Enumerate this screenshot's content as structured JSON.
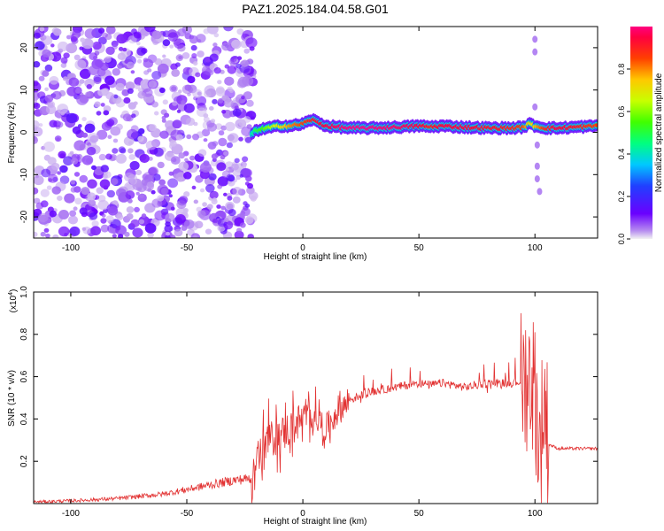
{
  "figure_title": "PAZ1.2025.184.04.58.G01",
  "colorbar": {
    "label": "Normalized spectral amplitude",
    "ticks": [
      "0.0",
      "0.2",
      "0.4",
      "0.6",
      "0.8"
    ],
    "tick_values": [
      0.0,
      0.2,
      0.4,
      0.6,
      0.8
    ]
  },
  "chart_data": [
    {
      "type": "heatmap",
      "title": "",
      "xlabel": "Height of straight line (km)",
      "ylabel": "Frequency (Hz)",
      "xlim": [
        -116,
        127
      ],
      "ylim": [
        -25,
        25
      ],
      "xticks": [
        -100,
        -50,
        0,
        50,
        100
      ],
      "xtick_labels": [
        "-100",
        "-50",
        "0",
        "50",
        "100"
      ],
      "yticks": [
        -20,
        -10,
        0,
        10,
        20
      ],
      "ytick_labels": [
        "-20",
        "-10",
        "0",
        "10",
        "20"
      ],
      "colormap": "rainbow (purple to magenta)",
      "noise_region_x": [
        -116,
        -21
      ],
      "tone_ridge": {
        "x": [
          -22,
          -20,
          -15,
          -10,
          -5,
          0,
          4,
          10,
          20,
          30,
          40,
          50,
          55,
          60,
          70,
          80,
          90,
          95,
          98,
          100,
          105,
          110,
          120,
          127
        ],
        "freq": [
          -0.5,
          0.5,
          1.0,
          1.5,
          1.5,
          2.0,
          3.0,
          1.5,
          1.0,
          1.0,
          1.2,
          1.5,
          1.3,
          1.5,
          1.2,
          1.0,
          1.0,
          1.2,
          2.0,
          1.5,
          1.0,
          1.0,
          1.3,
          1.5
        ],
        "amplitude": [
          0.4,
          0.5,
          0.6,
          0.7,
          0.8,
          0.85,
          0.9,
          0.95,
          1.0,
          1.0,
          0.98,
          0.95,
          0.9,
          0.95,
          0.95,
          0.92,
          0.9,
          0.85,
          0.7,
          0.75,
          0.9,
          0.95,
          0.9,
          0.85
        ]
      },
      "grid": false
    },
    {
      "type": "line",
      "title": "",
      "xlabel": "Height of straight line (km)",
      "ylabel": "SNR (10 * v/v)",
      "y_multiplier": "(x10^4)",
      "xlim": [
        -116,
        127
      ],
      "ylim": [
        0,
        1.0
      ],
      "xticks": [
        -100,
        -50,
        0,
        50,
        100
      ],
      "xtick_labels": [
        "-100",
        "-50",
        "0",
        "50",
        "100"
      ],
      "yticks": [
        0.2,
        0.4,
        0.6,
        0.8,
        1.0
      ],
      "ytick_labels": [
        "0.2",
        "0.4",
        "0.6",
        "0.8",
        "1.0"
      ],
      "color": "#e23232",
      "series": [
        {
          "x": [
            -116,
            -100,
            -80,
            -60,
            -50,
            -40,
            -30,
            -22,
            -20,
            -15,
            -10,
            -5,
            0,
            5,
            10,
            15,
            20,
            30,
            40,
            50,
            55,
            60,
            70,
            80,
            90,
            95,
            98,
            100,
            102,
            104,
            106,
            110,
            120,
            127
          ],
          "y": [
            0.005,
            0.01,
            0.02,
            0.04,
            0.06,
            0.08,
            0.1,
            0.11,
            0.2,
            0.3,
            0.32,
            0.36,
            0.4,
            0.42,
            0.35,
            0.44,
            0.49,
            0.53,
            0.55,
            0.57,
            0.56,
            0.57,
            0.55,
            0.57,
            0.57,
            0.58,
            0.6,
            0.55,
            0.25,
            0.5,
            0.28,
            0.26,
            0.26,
            0.26
          ]
        }
      ]
    }
  ]
}
